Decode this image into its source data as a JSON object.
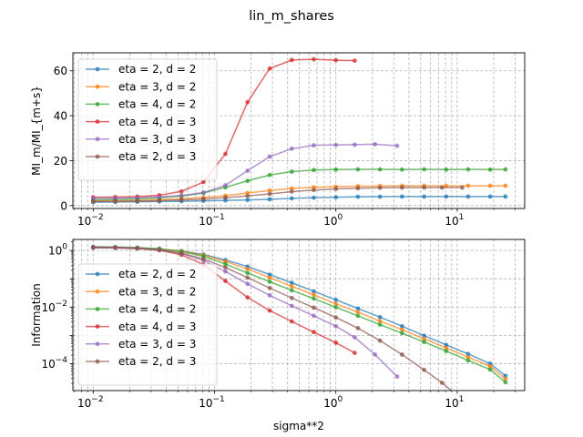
{
  "figure": {
    "suptitle": "lin_m_shares"
  },
  "chart_data": [
    {
      "type": "line",
      "title": "",
      "xlabel": "",
      "ylabel": "MI_m/MI_{m+s}",
      "xscale": "log",
      "yscale": "linear",
      "xlim": [
        0.0068,
        36
      ],
      "ylim": [
        -1.3,
        68
      ],
      "grid": true,
      "legend_position": "upper-left",
      "xticks": [
        {
          "v": 0.01,
          "base": "10",
          "exp": "−2"
        },
        {
          "v": 0.1,
          "base": "10",
          "exp": "−1"
        },
        {
          "v": 1,
          "base": "10",
          "exp": "0"
        },
        {
          "v": 10,
          "base": "10",
          "exp": "1"
        }
      ],
      "yticks": [
        {
          "v": 0,
          "label": "0"
        },
        {
          "v": 20,
          "label": "20"
        },
        {
          "v": 40,
          "label": "40"
        },
        {
          "v": 60,
          "label": "60"
        }
      ],
      "series": [
        {
          "name": "eta = 2, d = 2",
          "color": "#1f77b4",
          "x": [
            0.01,
            0.0152,
            0.0231,
            0.0351,
            0.0534,
            0.0811,
            0.123,
            0.187,
            0.285,
            0.433,
            0.658,
            1.0,
            1.52,
            2.31,
            3.51,
            5.34,
            8.11,
            12.3,
            18.7,
            25.0
          ],
          "y": [
            1.5,
            1.6,
            1.7,
            1.8,
            1.9,
            2.1,
            2.3,
            2.5,
            2.8,
            3.2,
            3.5,
            3.7,
            3.9,
            3.95,
            4.0,
            4.0,
            4.0,
            4.0,
            4.0,
            4.0
          ]
        },
        {
          "name": "eta = 3, d = 2",
          "color": "#ff7f0e",
          "x": [
            0.01,
            0.0152,
            0.0231,
            0.0351,
            0.0534,
            0.0811,
            0.123,
            0.187,
            0.285,
            0.433,
            0.658,
            1.0,
            1.52,
            2.31,
            3.51,
            5.34,
            8.11,
            12.3,
            18.7,
            25.0
          ],
          "y": [
            2.0,
            2.1,
            2.3,
            2.6,
            3.0,
            3.6,
            4.4,
            5.6,
            6.7,
            7.6,
            8.1,
            8.4,
            8.6,
            8.7,
            8.8,
            8.8,
            8.8,
            8.8,
            8.8,
            8.8
          ]
        },
        {
          "name": "eta = 4, d = 2",
          "color": "#2ca02c",
          "x": [
            0.01,
            0.0152,
            0.0231,
            0.0351,
            0.0534,
            0.0811,
            0.123,
            0.187,
            0.285,
            0.433,
            0.658,
            1.0,
            1.52,
            2.31,
            3.51,
            5.34,
            8.11,
            12.3,
            18.7,
            25.0
          ],
          "y": [
            2.5,
            2.7,
            3.0,
            3.4,
            4.2,
            5.6,
            8.1,
            11.0,
            13.6,
            15.1,
            15.8,
            16.0,
            16.1,
            16.1,
            16.0,
            16.1,
            16.0,
            16.1,
            16.0,
            16.1
          ]
        },
        {
          "name": "eta = 4, d = 3",
          "color": "#d62728",
          "x": [
            0.01,
            0.0152,
            0.0231,
            0.0351,
            0.0534,
            0.0811,
            0.123,
            0.187,
            0.285,
            0.433,
            0.658,
            1.0,
            1.43
          ],
          "y": [
            3.7,
            3.8,
            4.0,
            4.6,
            6.3,
            10.5,
            23.0,
            46.0,
            61.0,
            64.8,
            65.1,
            64.7,
            64.5
          ]
        },
        {
          "name": "eta = 3, d = 3",
          "color": "#9467bd",
          "x": [
            0.01,
            0.0152,
            0.0231,
            0.0351,
            0.0534,
            0.0811,
            0.123,
            0.187,
            0.285,
            0.433,
            0.658,
            1.0,
            1.43,
            2.1,
            3.2
          ],
          "y": [
            3.2,
            3.3,
            3.5,
            3.9,
            4.5,
            5.8,
            9.0,
            15.5,
            21.8,
            25.3,
            26.8,
            27.0,
            27.1,
            27.3,
            26.6
          ]
        },
        {
          "name": "eta = 2, d = 3",
          "color": "#8c564b",
          "x": [
            0.01,
            0.0152,
            0.0231,
            0.0351,
            0.0534,
            0.0811,
            0.123,
            0.187,
            0.285,
            0.433,
            0.658,
            1.0,
            1.52,
            2.31,
            3.51,
            5.34,
            7.5,
            11.0
          ],
          "y": [
            1.8,
            1.9,
            2.0,
            2.2,
            2.5,
            2.9,
            3.5,
            4.3,
            5.2,
            6.2,
            6.9,
            7.4,
            7.7,
            7.9,
            8.0,
            8.0,
            8.0,
            8.0
          ]
        }
      ]
    },
    {
      "type": "line",
      "title": "",
      "xlabel": "sigma**2",
      "ylabel": "Information",
      "xscale": "log",
      "yscale": "log",
      "xlim": [
        0.0068,
        36
      ],
      "ylim": [
        1.12e-05,
        2.45
      ],
      "grid": true,
      "legend_position": "left",
      "xticks": [
        {
          "v": 0.01,
          "base": "10",
          "exp": "−2"
        },
        {
          "v": 0.1,
          "base": "10",
          "exp": "−1"
        },
        {
          "v": 1,
          "base": "10",
          "exp": "0"
        },
        {
          "v": 10,
          "base": "10",
          "exp": "1"
        }
      ],
      "yticks": [
        {
          "v": 1,
          "base": "10",
          "exp": "0"
        },
        {
          "v": 0.01,
          "base": "10",
          "exp": "−2"
        },
        {
          "v": 0.0001,
          "base": "10",
          "exp": "−4"
        }
      ],
      "series": [
        {
          "name": "eta = 2, d = 2",
          "color": "#1f77b4",
          "x": [
            0.01,
            0.0152,
            0.0231,
            0.0351,
            0.0534,
            0.0811,
            0.123,
            0.187,
            0.285,
            0.433,
            0.658,
            1.0,
            1.52,
            2.31,
            3.51,
            5.34,
            8.11,
            12.3,
            18.7,
            25.0
          ],
          "y": [
            1.25,
            1.24,
            1.2,
            1.12,
            0.95,
            0.72,
            0.46,
            0.27,
            0.14,
            0.072,
            0.036,
            0.018,
            0.0089,
            0.0044,
            0.0021,
            0.00098,
            0.00046,
            0.00022,
            0.0001,
            3.7e-05
          ]
        },
        {
          "name": "eta = 3, d = 2",
          "color": "#ff7f0e",
          "x": [
            0.01,
            0.0152,
            0.0231,
            0.0351,
            0.0534,
            0.0811,
            0.123,
            0.187,
            0.285,
            0.433,
            0.658,
            1.0,
            1.52,
            2.31,
            3.51,
            5.34,
            8.11,
            12.3,
            18.7,
            25.0
          ],
          "y": [
            1.3,
            1.28,
            1.23,
            1.13,
            0.94,
            0.68,
            0.41,
            0.22,
            0.11,
            0.054,
            0.027,
            0.013,
            0.0066,
            0.0032,
            0.0016,
            0.00075,
            0.00036,
            0.00017,
            8e-05,
            2.9e-05
          ]
        },
        {
          "name": "eta = 4, d = 2",
          "color": "#2ca02c",
          "x": [
            0.01,
            0.0152,
            0.0231,
            0.0351,
            0.0534,
            0.0811,
            0.123,
            0.187,
            0.285,
            0.433,
            0.658,
            1.0,
            1.52,
            2.31,
            3.51,
            5.34,
            8.11,
            12.3,
            18.7,
            25.0
          ],
          "y": [
            1.35,
            1.33,
            1.27,
            1.15,
            0.92,
            0.62,
            0.33,
            0.16,
            0.079,
            0.039,
            0.02,
            0.0098,
            0.0049,
            0.0024,
            0.0012,
            0.00058,
            0.00028,
            0.00013,
            6.2e-05,
            2.2e-05
          ]
        },
        {
          "name": "eta = 4, d = 3",
          "color": "#d62728",
          "x": [
            0.01,
            0.0152,
            0.0231,
            0.0351,
            0.0534,
            0.0811,
            0.123,
            0.187,
            0.285,
            0.433,
            0.658,
            1.0,
            1.43
          ],
          "y": [
            1.3,
            1.27,
            1.2,
            1.02,
            0.7,
            0.32,
            0.083,
            0.022,
            0.0075,
            0.0031,
            0.0013,
            0.00055,
            0.00024
          ]
        },
        {
          "name": "eta = 3, d = 3",
          "color": "#9467bd",
          "x": [
            0.01,
            0.0152,
            0.0231,
            0.0351,
            0.0534,
            0.0811,
            0.123,
            0.187,
            0.285,
            0.433,
            0.658,
            1.0,
            1.43,
            2.1,
            3.2
          ],
          "y": [
            1.3,
            1.27,
            1.2,
            1.05,
            0.78,
            0.44,
            0.18,
            0.066,
            0.026,
            0.011,
            0.0049,
            0.0021,
            0.00085,
            0.00021,
            3.5e-05
          ]
        },
        {
          "name": "eta = 2, d = 3",
          "color": "#8c564b",
          "x": [
            0.01,
            0.0152,
            0.0231,
            0.0351,
            0.0534,
            0.0811,
            0.123,
            0.187,
            0.285,
            0.433,
            0.658,
            1.0,
            1.52,
            2.31,
            3.51,
            5.34,
            7.5,
            11.0
          ],
          "y": [
            1.25,
            1.23,
            1.16,
            1.03,
            0.8,
            0.5,
            0.25,
            0.11,
            0.047,
            0.021,
            0.0095,
            0.0043,
            0.0018,
            0.00065,
            0.00021,
            6e-05,
            2.1e-05,
            5.5e-06
          ]
        }
      ]
    }
  ]
}
